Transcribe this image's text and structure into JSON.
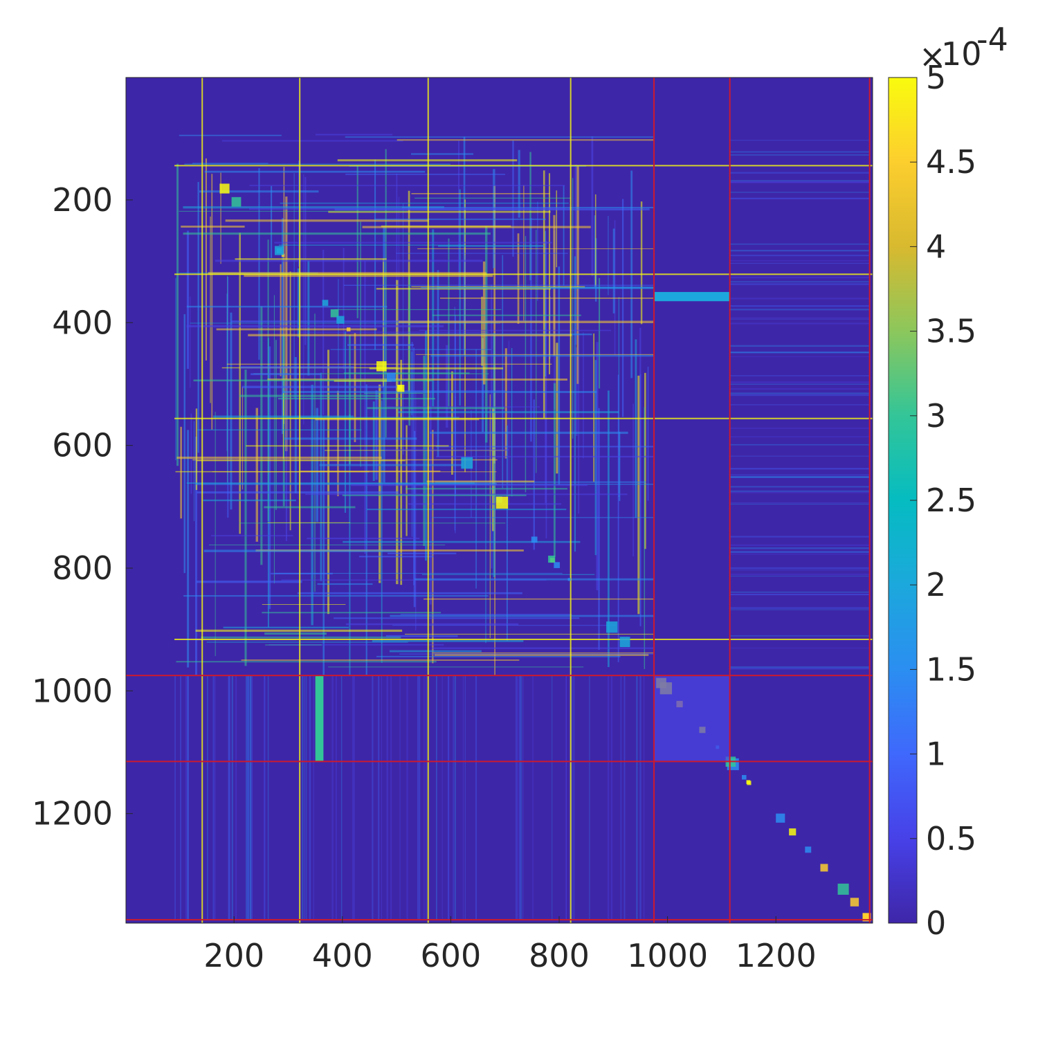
{
  "chart_data": {
    "type": "heatmap",
    "title": "",
    "xlabel": "",
    "ylabel": "",
    "matrix_size": 1378,
    "xlim": [
      1,
      1378
    ],
    "ylim": [
      1,
      1378
    ],
    "x_ticks": [
      200,
      400,
      600,
      800,
      1000,
      1200
    ],
    "x_tick_labels": [
      "200",
      "400",
      "600",
      "800",
      "1000",
      "1200"
    ],
    "y_ticks": [
      200,
      400,
      600,
      800,
      1000,
      1200
    ],
    "y_tick_labels": [
      "200",
      "400",
      "600",
      "800",
      "1000",
      "1200"
    ],
    "colorbar": {
      "min": 0,
      "max": 0.0005,
      "ticks": [
        0,
        0.5,
        1,
        1.5,
        2,
        2.5,
        3,
        3.5,
        4,
        4.5,
        5
      ],
      "tick_labels": [
        "0",
        "0.5",
        "1",
        "1.5",
        "2",
        "2.5",
        "3",
        "3.5",
        "4",
        "4.5",
        "5"
      ],
      "multiplier_symbol": "×",
      "multiplier_base": "10",
      "multiplier_exponent": "-4",
      "colormap": "parula"
    },
    "block_boundaries": [
      975,
      1115,
      1373
    ],
    "boundary_color": "#cc1a2e",
    "background_color": "#3e26a8",
    "highlight_color": "#f9fb0e",
    "grid": false
  }
}
